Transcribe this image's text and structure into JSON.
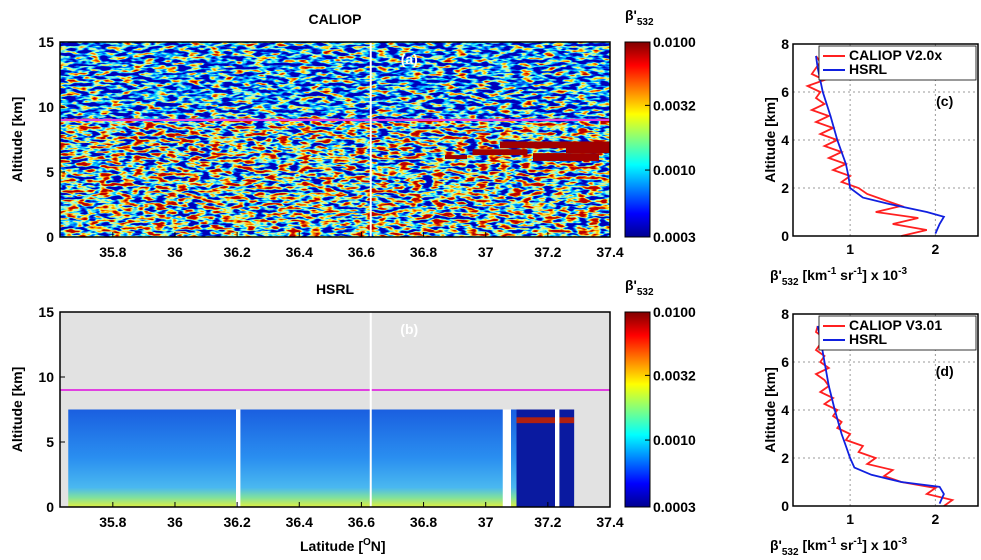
{
  "chart_data": [
    {
      "type": "heatmap",
      "title": "CALIOP",
      "panel_label": "(a)",
      "ylabel": "Altitude [km]",
      "xlim": [
        35.63,
        37.4
      ],
      "xticks": [
        35.8,
        36,
        36.2,
        36.4,
        36.6,
        36.8,
        37,
        37.2,
        37.4
      ],
      "ylim": [
        0,
        15
      ],
      "yticks": [
        0,
        5,
        10,
        15
      ],
      "marker_line": {
        "value": 9,
        "color": "#e040e0"
      },
      "profile_latitude": 36.63,
      "colorbar": {
        "label": [
          {
            "text": "β'"
          },
          {
            "sub": "532"
          }
        ],
        "scale": "log",
        "lim": [
          0.0003,
          0.01
        ],
        "ticks": [
          0.0003,
          {
            "value": 0.001,
            "label": "0.0010"
          },
          0.0032,
          {
            "value": 0.01,
            "label": "0.0100"
          }
        ]
      }
    },
    {
      "type": "heatmap",
      "title": "HSRL",
      "panel_label": "(b)",
      "ylabel": "Altitude [km]",
      "xlabel": [
        {
          "text": "Latitude ["
        },
        {
          "sup": "O"
        },
        {
          "text": "N]"
        }
      ],
      "xlim": [
        35.63,
        37.4
      ],
      "xticks": [
        35.8,
        36,
        36.2,
        36.4,
        36.6,
        36.8,
        37,
        37.2,
        37.4
      ],
      "ylim": [
        0,
        15
      ],
      "yticks": [
        0,
        5,
        10,
        15
      ],
      "marker_line": {
        "value": 9,
        "color": "#e040e0"
      },
      "profile_latitude": 36.63,
      "colorbar": {
        "label": [
          {
            "text": "β'"
          },
          {
            "sub": "532"
          }
        ],
        "scale": "log",
        "lim": [
          0.0003,
          0.01
        ],
        "ticks": [
          0.0003,
          {
            "value": 0.001,
            "label": "0.0010"
          },
          0.0032,
          {
            "value": 0.01,
            "label": "0.0100"
          }
        ]
      }
    },
    {
      "type": "line",
      "panel_label": "(c)",
      "ylabel": "Altitude [km]",
      "xlabel": [
        {
          "text": "β'"
        },
        {
          "sub": "532"
        },
        {
          "text": " [km"
        },
        {
          "sup": "-1"
        },
        {
          "text": " sr"
        },
        {
          "sup": "-1"
        },
        {
          "text": "] x 10"
        },
        {
          "sup": "-3"
        }
      ],
      "xlim": [
        0.33,
        2.5
      ],
      "xticks": [
        1,
        2
      ],
      "ylim": [
        0,
        8
      ],
      "yticks": [
        0,
        2,
        4,
        6,
        8
      ],
      "grid": true,
      "legend": "upper right",
      "series": [
        {
          "name": "CALIOP V2.0x",
          "color": "#ff2020",
          "altitude": [
            0,
            0.25,
            0.5,
            0.75,
            1,
            1.25,
            1.5,
            1.75,
            2,
            2.25,
            2.5,
            2.75,
            3,
            3.25,
            3.5,
            3.75,
            4,
            4.25,
            4.5,
            4.75,
            5,
            5.25,
            5.5,
            5.75,
            6,
            6.25,
            6.5,
            6.75,
            7,
            7.25,
            7.5
          ],
          "values": [
            1.6,
            1.9,
            1.5,
            1.8,
            1.3,
            1.6,
            1.4,
            1.2,
            1.1,
            0.9,
            1.0,
            0.8,
            0.95,
            0.75,
            0.9,
            0.7,
            0.85,
            0.65,
            0.8,
            0.6,
            0.75,
            0.55,
            0.7,
            0.6,
            0.65,
            0.5,
            0.7,
            0.55,
            0.6,
            0.65,
            0.6
          ]
        },
        {
          "name": "HSRL",
          "color": "#1020e0",
          "altitude": [
            0.1,
            0.5,
            0.8,
            1.0,
            1.3,
            1.6,
            2.0,
            2.5,
            3,
            4,
            5,
            6,
            7,
            7.5
          ],
          "values": [
            2.0,
            2.05,
            2.1,
            1.9,
            1.5,
            1.15,
            1.0,
            0.98,
            0.95,
            0.85,
            0.77,
            0.68,
            0.62,
            0.6
          ]
        }
      ]
    },
    {
      "type": "line",
      "panel_label": "(d)",
      "ylabel": "Altitude [km]",
      "xlabel": [
        {
          "text": "β'"
        },
        {
          "sub": "532"
        },
        {
          "text": " [km"
        },
        {
          "sup": "-1"
        },
        {
          "text": " sr"
        },
        {
          "sup": "-1"
        },
        {
          "text": "] x 10"
        },
        {
          "sup": "-3"
        }
      ],
      "xlim": [
        0.33,
        2.5
      ],
      "xticks": [
        1,
        2
      ],
      "ylim": [
        0,
        8
      ],
      "yticks": [
        0,
        2,
        4,
        6,
        8
      ],
      "grid": true,
      "legend": "upper right",
      "series": [
        {
          "name": "CALIOP V3.01",
          "color": "#ff2020",
          "altitude": [
            0,
            0.25,
            0.5,
            0.75,
            1,
            1.25,
            1.5,
            1.75,
            2,
            2.25,
            2.5,
            2.75,
            3,
            3.25,
            3.5,
            3.75,
            4,
            4.25,
            4.5,
            4.75,
            5,
            5.25,
            5.5,
            5.75,
            6,
            6.25,
            6.5,
            6.75,
            7,
            7.25,
            7.5
          ],
          "values": [
            2.1,
            2.2,
            1.9,
            2.0,
            1.6,
            1.4,
            1.5,
            1.2,
            1.3,
            1.1,
            1.15,
            0.95,
            1.0,
            0.85,
            0.9,
            0.8,
            0.85,
            0.7,
            0.8,
            0.65,
            0.75,
            0.7,
            0.6,
            0.75,
            0.65,
            0.7,
            0.6,
            0.65,
            0.7,
            0.6,
            0.62
          ]
        },
        {
          "name": "HSRL",
          "color": "#1020e0",
          "altitude": [
            0.1,
            0.5,
            0.8,
            1.0,
            1.3,
            1.6,
            2.0,
            2.5,
            3,
            4,
            5,
            6,
            7,
            7.5
          ],
          "values": [
            2.05,
            2.1,
            2.05,
            1.6,
            1.25,
            1.05,
            1.0,
            0.95,
            0.9,
            0.82,
            0.75,
            0.7,
            0.65,
            0.62
          ]
        }
      ]
    }
  ]
}
